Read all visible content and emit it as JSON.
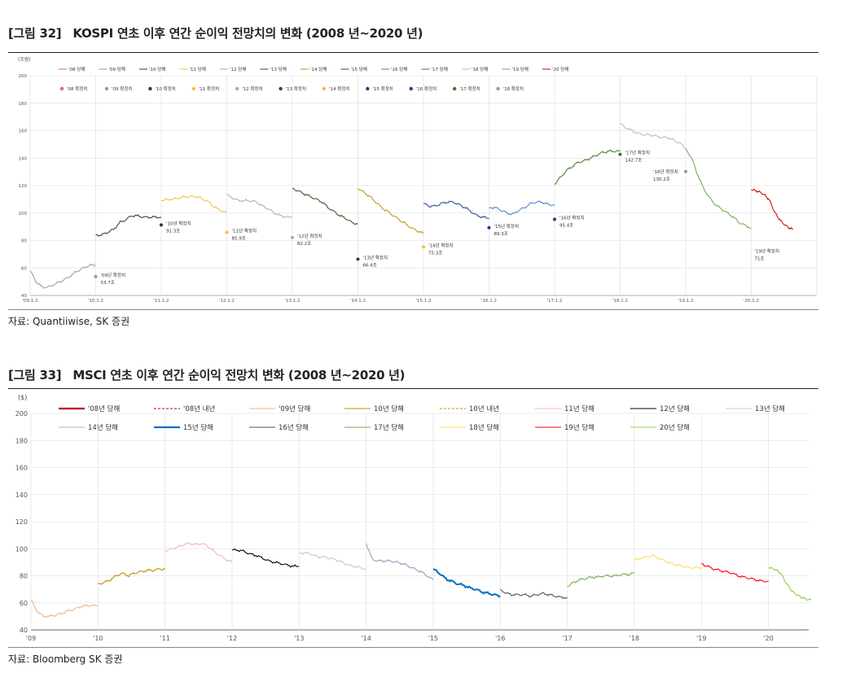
{
  "fig1": {
    "number": "[그림 32]",
    "title": "KOSPI 연초 이후 연간 순이익 전망치의 변화 (2008 년~2020 년)",
    "source": "자료: Quantiiwise, SK 증권"
  },
  "fig2": {
    "number": "[그림 33]",
    "title": "MSCI 연초 이후 연간 순이익 전망치 변화 (2008 년~2020 년)",
    "source": "자료: Bloomberg SK 증권"
  },
  "chart_data": [
    {
      "type": "line",
      "unit_label": "(조원)",
      "ylim": [
        40,
        200
      ],
      "yticks": [
        "40",
        "60",
        "80",
        "100",
        "120",
        "140",
        "160",
        "180",
        "200"
      ],
      "xticks": [
        "'09.1.2",
        "'10.1.2",
        "'11.1.2",
        "'12.1.2",
        "'13.1.2",
        "'14.1.2",
        "'15.1.2",
        "'16.1.2",
        "'17.1.2",
        "'18.1.2",
        "'19.1.2",
        "'20.1.2"
      ],
      "grid": true,
      "legend_position": "top",
      "legend_lines": [
        {
          "name": "'08 당해",
          "color": "#e06666"
        },
        {
          "name": "'09 당해",
          "color": "#999999"
        },
        {
          "name": "'10 당해",
          "color": "#333333"
        },
        {
          "name": "'11 당해",
          "color": "#f1c232"
        },
        {
          "name": "'12 당해",
          "color": "#aaaaaa"
        },
        {
          "name": "'13 당해",
          "color": "#274e13"
        },
        {
          "name": "'14 당해",
          "color": "#bf9000"
        },
        {
          "name": "'15 당해",
          "color": "#1c4587"
        },
        {
          "name": "'16 당해",
          "color": "#3d85c6"
        },
        {
          "name": "'17 당해",
          "color": "#38761d"
        },
        {
          "name": "'18 당해",
          "color": "#b7b7b7"
        },
        {
          "name": "'19 당해",
          "color": "#6aa84f"
        },
        {
          "name": "'20 당해",
          "color": "#cc0000"
        }
      ],
      "legend_markers": [
        {
          "name": "'08 확정치",
          "color": "#e06666"
        },
        {
          "name": "'09 확정치",
          "color": "#999999"
        },
        {
          "name": "'10 확정치",
          "color": "#333333"
        },
        {
          "name": "'11 확정치",
          "color": "#f1c232"
        },
        {
          "name": "'12 확정치",
          "color": "#aaaaaa"
        },
        {
          "name": "'13 확정치",
          "color": "#274e13"
        },
        {
          "name": "'14 확정치",
          "color": "#f1c232"
        },
        {
          "name": "'15 확정치",
          "color": "#1c4587"
        },
        {
          "name": "'16 확정치",
          "color": "#1c4587"
        },
        {
          "name": "'17 확정치",
          "color": "#38761d"
        },
        {
          "name": "'18 확정치",
          "color": "#999999"
        }
      ],
      "series": [
        {
          "year": "09",
          "color": "#999999",
          "values": [
            58,
            50,
            46,
            46,
            48,
            50,
            52,
            55,
            58,
            60,
            62,
            62
          ]
        },
        {
          "year": "10",
          "color": "#333333",
          "values": [
            84,
            84,
            86,
            88,
            93,
            95,
            98,
            98,
            97,
            97,
            97,
            97
          ]
        },
        {
          "year": "11",
          "color": "#f1c232",
          "values": [
            109,
            110,
            110,
            111,
            112,
            112,
            112,
            110,
            108,
            104,
            102,
            100
          ]
        },
        {
          "year": "12",
          "color": "#aaaaaa",
          "values": [
            113,
            111,
            109,
            109,
            109,
            108,
            105,
            103,
            100,
            98,
            97,
            97
          ]
        },
        {
          "year": "13",
          "color": "#274e13",
          "values": [
            118,
            116,
            114,
            112,
            110,
            108,
            104,
            101,
            98,
            96,
            93,
            92
          ]
        },
        {
          "year": "14",
          "color": "#bf9000",
          "values": [
            118,
            115,
            112,
            108,
            104,
            101,
            98,
            95,
            92,
            89,
            87,
            85
          ]
        },
        {
          "year": "15",
          "color": "#1c4587",
          "values": [
            107,
            105,
            105,
            107,
            108,
            108,
            106,
            104,
            101,
            98,
            97,
            96
          ]
        },
        {
          "year": "16",
          "color": "#3d85c6",
          "values": [
            104,
            104,
            102,
            100,
            99,
            102,
            104,
            107,
            108,
            108,
            106,
            106
          ]
        },
        {
          "year": "17",
          "color": "#38761d",
          "values": [
            121,
            126,
            131,
            134,
            137,
            138,
            140,
            142,
            144,
            145,
            145,
            145
          ]
        },
        {
          "year": "18",
          "color": "#b7b7b7",
          "values": [
            165,
            162,
            160,
            158,
            157,
            157,
            156,
            155,
            155,
            153,
            151,
            147
          ]
        },
        {
          "year": "19",
          "color": "#6aa84f",
          "values": [
            147,
            140,
            128,
            118,
            111,
            106,
            103,
            100,
            97,
            93,
            91,
            89
          ]
        },
        {
          "year": "20",
          "color": "#cc0000",
          "values": [
            117,
            116,
            114,
            110,
            100,
            94,
            90,
            88
          ]
        }
      ],
      "points": [
        {
          "name": "'09년 확정치",
          "value": "53.7조",
          "y": 53.7,
          "color": "#999999"
        },
        {
          "name": "'10년 확정치",
          "value": "91.3조",
          "y": 91.3,
          "color": "#333333"
        },
        {
          "name": "'11년 확정치",
          "value": "85.9조",
          "y": 85.9,
          "color": "#f1c232"
        },
        {
          "name": "'12년 확정치",
          "value": "82.2조",
          "y": 82.2,
          "color": "#aaaaaa"
        },
        {
          "name": "'13년 확정치",
          "value": "66.4조",
          "y": 66.4,
          "color": "#274e13"
        },
        {
          "name": "'14년 확정치",
          "value": "75.3조",
          "y": 75.3,
          "color": "#f1c232"
        },
        {
          "name": "'15년 확정치",
          "value": "89.3조",
          "y": 89.3,
          "color": "#1c4587"
        },
        {
          "name": "'16년 확정치",
          "value": "95.4조",
          "y": 95.4,
          "color": "#1c4587"
        },
        {
          "name": "'17년 확정치",
          "value": "142.7조",
          "y": 142.7,
          "color": "#38761d"
        },
        {
          "name": "'18년 확정치",
          "value": "130.2조",
          "y": 130.2,
          "color": "#999999"
        },
        {
          "name": "'19년 확정치",
          "value": "71조",
          "y": 71,
          "color": null
        }
      ]
    },
    {
      "type": "line",
      "unit_label": "($)",
      "ylim": [
        40,
        200
      ],
      "yticks": [
        "40",
        "60",
        "80",
        "100",
        "120",
        "140",
        "160",
        "180",
        "200"
      ],
      "xticks": [
        "'09",
        "'10",
        "'11",
        "'12",
        "'13",
        "'14",
        "'15",
        "'16",
        "'17",
        "'18",
        "'19",
        "'20"
      ],
      "grid": true,
      "legend_position": "top",
      "legend": [
        {
          "name": "'08년 당해",
          "color": "#c00000",
          "dash": false,
          "bold": true
        },
        {
          "name": "'08년 내년",
          "color": "#c00000",
          "dash": true,
          "bold": false
        },
        {
          "name": "'09년 당해",
          "color": "#f4b183",
          "dash": false,
          "bold": false
        },
        {
          "name": "10년 당해",
          "color": "#bf9000",
          "dash": false,
          "bold": false
        },
        {
          "name": "10년 내년",
          "color": "#bf9000",
          "dash": true,
          "bold": false
        },
        {
          "name": "11년 당해",
          "color": "#f4b6c2",
          "dash": false,
          "bold": false
        },
        {
          "name": "12년 당해",
          "color": "#000000",
          "dash": false,
          "bold": false
        },
        {
          "name": "13년 당해",
          "color": "#c9c9c9",
          "dash": false,
          "bold": false
        },
        {
          "name": "14년 당해",
          "color": "#a6b4c8",
          "dash": false,
          "bold": false
        },
        {
          "name": "15년 당해",
          "color": "#0070c0",
          "dash": false,
          "bold": true
        },
        {
          "name": "16년 당해",
          "color": "#44546a",
          "dash": false,
          "bold": false
        },
        {
          "name": "17년 당해",
          "color": "#70ad47",
          "dash": false,
          "bold": false
        },
        {
          "name": "18년 당해",
          "color": "#ffd966",
          "dash": false,
          "bold": false
        },
        {
          "name": "19년 당해",
          "color": "#ff0000",
          "dash": false,
          "bold": false
        },
        {
          "name": "20년 당해",
          "color": "#92d050",
          "dash": false,
          "bold": false
        }
      ],
      "series": [
        {
          "year": "09",
          "color": "#f4b183",
          "values": [
            62,
            54,
            50,
            50,
            51,
            52,
            54,
            55,
            57,
            58,
            58,
            58
          ]
        },
        {
          "year": "10",
          "color": "#bf9000",
          "values": [
            74,
            75,
            77,
            80,
            82,
            80,
            82,
            83,
            84,
            84,
            85,
            85
          ]
        },
        {
          "year": "11",
          "color": "#f4b6c2",
          "values": [
            98,
            100,
            101,
            103,
            104,
            103,
            104,
            102,
            98,
            95,
            92,
            90
          ]
        },
        {
          "year": "12",
          "color": "#000000",
          "values": [
            99,
            99,
            98,
            96,
            95,
            93,
            91,
            90,
            89,
            88,
            87,
            87
          ]
        },
        {
          "year": "13",
          "color": "#c9c9c9",
          "values": [
            97,
            97,
            96,
            94,
            94,
            93,
            92,
            90,
            88,
            87,
            86,
            85
          ]
        },
        {
          "year": "14",
          "color": "#8ea2bd",
          "values": [
            104,
            92,
            91,
            91,
            91,
            90,
            89,
            87,
            85,
            83,
            80,
            77
          ]
        },
        {
          "year": "15",
          "color": "#0070c0",
          "values": [
            85,
            82,
            78,
            76,
            74,
            73,
            71,
            70,
            68,
            67,
            66,
            65
          ]
        },
        {
          "year": "16",
          "color": "#44546a",
          "values": [
            70,
            67,
            66,
            66,
            66,
            65,
            66,
            67,
            66,
            65,
            64,
            64
          ]
        },
        {
          "year": "17",
          "color": "#70ad47",
          "values": [
            72,
            75,
            77,
            78,
            79,
            79,
            80,
            80,
            80,
            81,
            81,
            82
          ]
        },
        {
          "year": "18",
          "color": "#ffd966",
          "values": [
            91,
            93,
            94,
            95,
            93,
            91,
            89,
            88,
            87,
            86,
            86,
            86
          ]
        },
        {
          "year": "19",
          "color": "#ff0000",
          "values": [
            89,
            87,
            85,
            84,
            83,
            82,
            80,
            79,
            78,
            77,
            76,
            76
          ]
        },
        {
          "year": "20",
          "color": "#92d050",
          "values": [
            86,
            85,
            82,
            74,
            68,
            65,
            63,
            62
          ]
        }
      ]
    }
  ]
}
